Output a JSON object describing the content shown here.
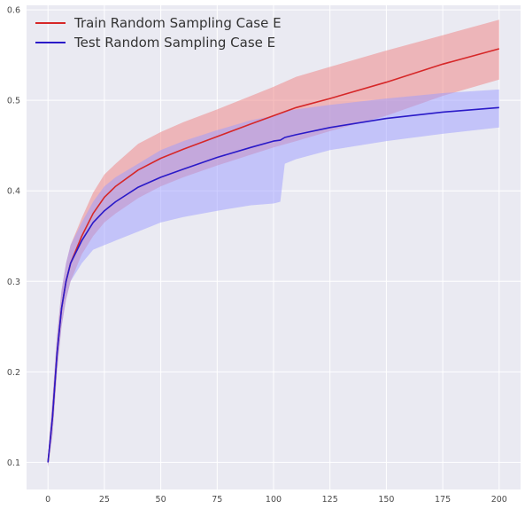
{
  "chart_data": {
    "type": "line",
    "title": "",
    "xlabel": "",
    "ylabel": "",
    "xlim": [
      -9.5,
      209.5
    ],
    "ylim": [
      0.07,
      0.605
    ],
    "xticks": [
      0,
      25,
      50,
      75,
      100,
      125,
      150,
      175,
      200
    ],
    "xtick_labels": [
      "0",
      "25",
      "50",
      "75",
      "100",
      "125",
      "150",
      "175",
      "200"
    ],
    "yticks": [
      0.1,
      0.2,
      0.3,
      0.4,
      0.5,
      0.6
    ],
    "ytick_labels": [
      "0.1",
      "0.2",
      "0.3",
      "0.4",
      "0.5",
      "0.6"
    ],
    "grid": true,
    "legend_position": "top-left",
    "background": "#eaeaf2",
    "series": [
      {
        "name": "Train Random Sampling Case E",
        "color": "#d62728",
        "band_color": "#f08080",
        "x": [
          0,
          2,
          4,
          6,
          8,
          10,
          15,
          20,
          25,
          30,
          40,
          50,
          60,
          75,
          90,
          100,
          110,
          125,
          150,
          175,
          200
        ],
        "mean": [
          0.1,
          0.15,
          0.22,
          0.27,
          0.3,
          0.32,
          0.35,
          0.375,
          0.393,
          0.405,
          0.423,
          0.436,
          0.446,
          0.46,
          0.474,
          0.483,
          0.492,
          0.502,
          0.52,
          0.54,
          0.557
        ],
        "lower": [
          0.095,
          0.13,
          0.2,
          0.25,
          0.28,
          0.3,
          0.33,
          0.35,
          0.365,
          0.375,
          0.392,
          0.405,
          0.415,
          0.428,
          0.44,
          0.448,
          0.455,
          0.466,
          0.483,
          0.505,
          0.523
        ],
        "upper": [
          0.105,
          0.17,
          0.24,
          0.29,
          0.32,
          0.34,
          0.37,
          0.398,
          0.418,
          0.43,
          0.452,
          0.465,
          0.476,
          0.49,
          0.505,
          0.515,
          0.526,
          0.537,
          0.555,
          0.572,
          0.589
        ]
      },
      {
        "name": "Test Random Sampling Case E",
        "color": "#2a1ac8",
        "band_color": "#9b9bff",
        "x": [
          0,
          2,
          4,
          6,
          8,
          10,
          15,
          20,
          25,
          30,
          40,
          50,
          60,
          75,
          90,
          100,
          103,
          105,
          110,
          125,
          150,
          175,
          200
        ],
        "mean": [
          0.1,
          0.15,
          0.22,
          0.27,
          0.3,
          0.32,
          0.345,
          0.365,
          0.378,
          0.388,
          0.404,
          0.415,
          0.424,
          0.437,
          0.448,
          0.455,
          0.456,
          0.459,
          0.462,
          0.47,
          0.48,
          0.487,
          0.492
        ],
        "lower": [
          0.095,
          0.13,
          0.2,
          0.25,
          0.28,
          0.3,
          0.32,
          0.335,
          0.34,
          0.345,
          0.355,
          0.365,
          0.371,
          0.378,
          0.384,
          0.386,
          0.388,
          0.43,
          0.435,
          0.445,
          0.455,
          0.463,
          0.47
        ],
        "upper": [
          0.105,
          0.17,
          0.24,
          0.29,
          0.32,
          0.34,
          0.365,
          0.388,
          0.405,
          0.415,
          0.43,
          0.445,
          0.455,
          0.467,
          0.478,
          0.483,
          0.485,
          0.488,
          0.49,
          0.495,
          0.502,
          0.508,
          0.512
        ]
      }
    ]
  }
}
